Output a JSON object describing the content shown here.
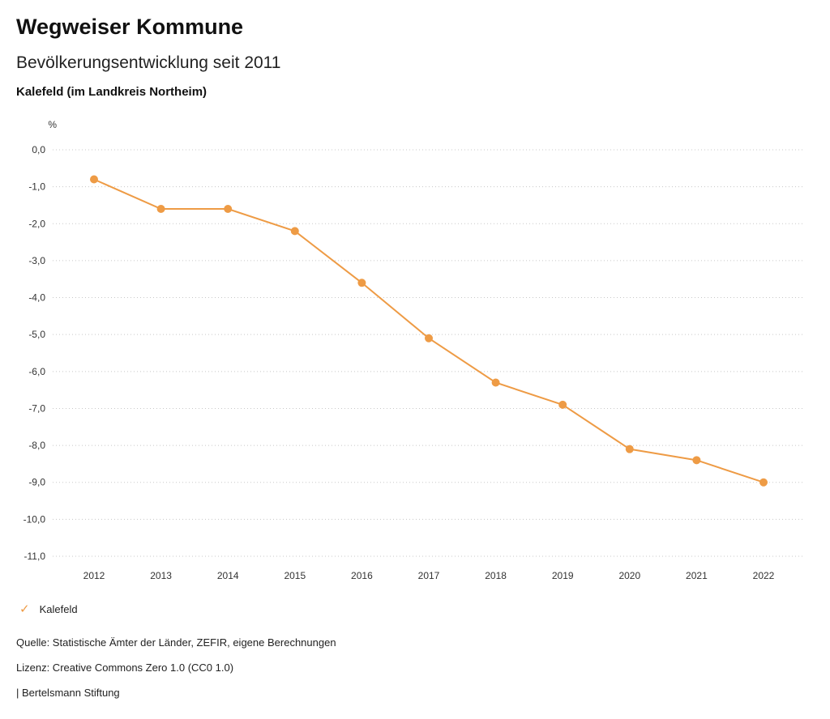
{
  "header": {
    "title": "Wegweiser Kommune",
    "subtitle": "Bevölkerungsentwicklung seit 2011",
    "location": "Kalefeld (im Landkreis Northeim)"
  },
  "legend": {
    "check_icon": "✓",
    "label": "Kalefeld"
  },
  "footer": {
    "source": "Quelle: Statistische Ämter der Länder, ZEFIR, eigene Berechnungen",
    "license": "Lizenz: Creative Commons Zero 1.0 (CC0 1.0)",
    "attribution": "| Bertelsmann Stiftung"
  },
  "colors": {
    "series": "#ee9b45",
    "grid": "#c8c8c8",
    "text": "#333333"
  },
  "chart_data": {
    "type": "line",
    "title": "Bevölkerungsentwicklung seit 2011",
    "xlabel": "",
    "ylabel": "%",
    "categories": [
      "2012",
      "2013",
      "2014",
      "2015",
      "2016",
      "2017",
      "2018",
      "2019",
      "2020",
      "2021",
      "2022"
    ],
    "series": [
      {
        "name": "Kalefeld",
        "values": [
          -0.8,
          -1.6,
          -1.6,
          -2.2,
          -3.6,
          -5.1,
          -6.3,
          -6.9,
          -8.1,
          -8.4,
          -9.0
        ]
      }
    ],
    "ylim": [
      -11,
      0
    ],
    "ytick_step": 1,
    "ytick_labels": [
      "0,0",
      "-1,0",
      "-2,0",
      "-3,0",
      "-4,0",
      "-5,0",
      "-6,0",
      "-7,0",
      "-8,0",
      "-9,0",
      "-10,0",
      "-11,0"
    ],
    "grid": "dotted-horizontal",
    "legend_position": "bottom-left"
  }
}
